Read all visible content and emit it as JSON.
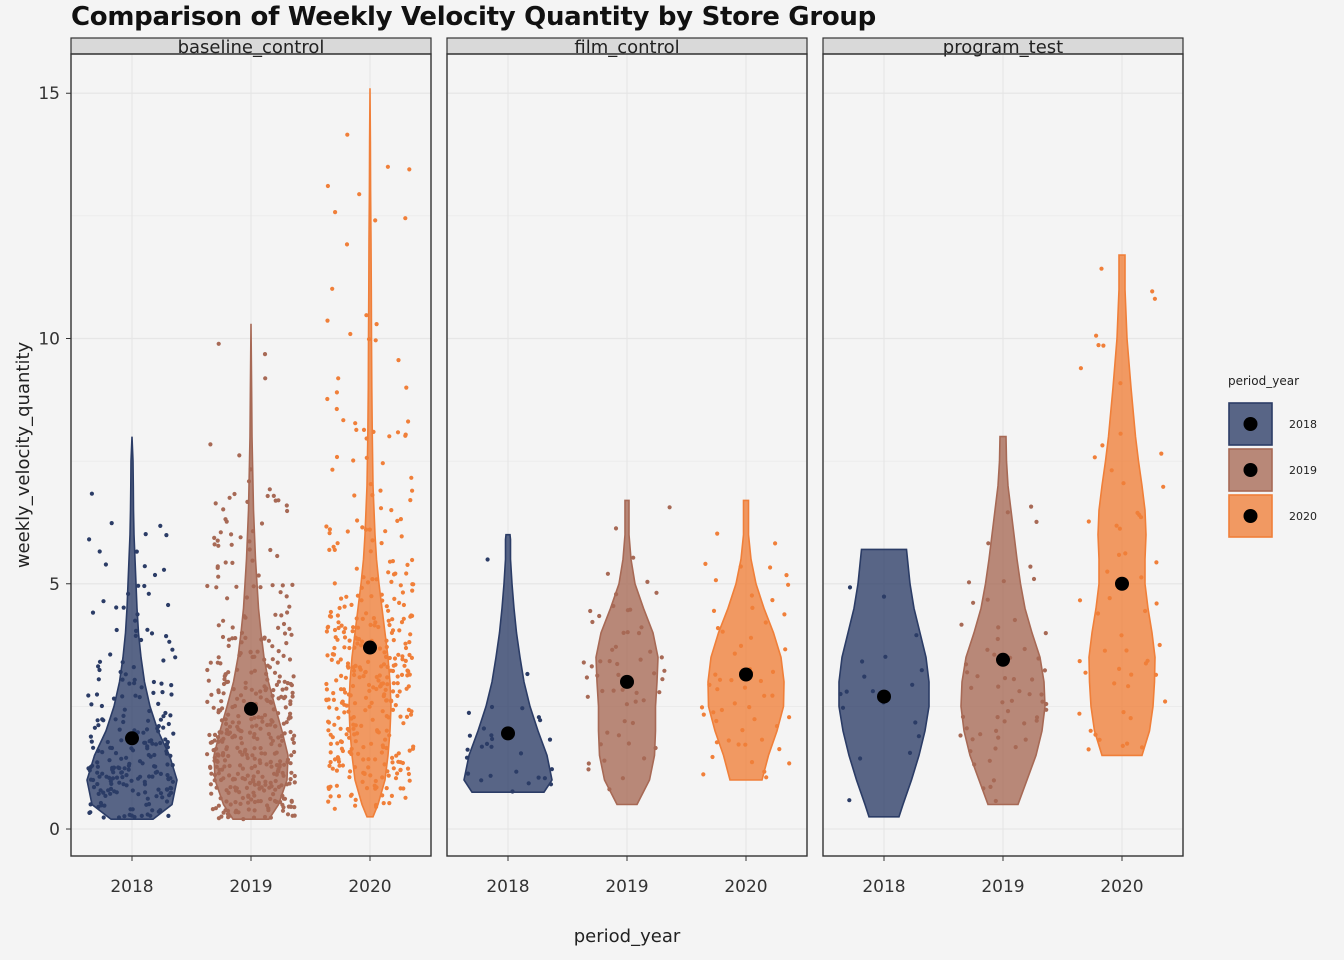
{
  "title": "Comparison of Weekly Velocity Quantity by Store Group",
  "colors": {
    "2018": "#2b3c66",
    "2019": "#a76955",
    "2020": "#f07f39",
    "mean_point": "#000000",
    "panel_bg": "#f4f4f4",
    "strip_bg": "#d9d9d9",
    "grid": "#e6e6e6",
    "border": "#333333"
  },
  "chart_data": {
    "type": "violin",
    "xlabel": "period_year",
    "ylabel": "weekly_velocity_quantity",
    "ylim": [
      -0.55,
      15.8
    ],
    "yticks": [
      0,
      5,
      10,
      15
    ],
    "categories": [
      "2018",
      "2019",
      "2020"
    ],
    "grid": true,
    "legend": {
      "title": "period_year",
      "position": "right",
      "entries": [
        "2018",
        "2019",
        "2020"
      ]
    },
    "facets": [
      {
        "name": "baseline_control",
        "series": [
          {
            "year": "2018",
            "min": 0.2,
            "max": 8.0,
            "mean": 1.85,
            "n_points": 230,
            "violin": [
              [
                0.2,
                0.42
              ],
              [
                0.5,
                0.8
              ],
              [
                1.0,
                0.9
              ],
              [
                1.5,
                0.75
              ],
              [
                2.0,
                0.52
              ],
              [
                2.5,
                0.36
              ],
              [
                3.0,
                0.25
              ],
              [
                3.5,
                0.18
              ],
              [
                4.0,
                0.13
              ],
              [
                4.5,
                0.1
              ],
              [
                5.0,
                0.08
              ],
              [
                5.5,
                0.06
              ],
              [
                6.0,
                0.04
              ],
              [
                6.5,
                0.03
              ],
              [
                7.0,
                0.025
              ],
              [
                7.5,
                0.02
              ],
              [
                8.0,
                0.0
              ]
            ]
          },
          {
            "year": "2019",
            "min": 0.2,
            "max": 10.3,
            "mean": 2.45,
            "n_points": 420,
            "violin": [
              [
                0.2,
                0.36
              ],
              [
                0.5,
                0.55
              ],
              [
                1.0,
                0.72
              ],
              [
                1.5,
                0.74
              ],
              [
                2.0,
                0.62
              ],
              [
                2.5,
                0.48
              ],
              [
                3.0,
                0.35
              ],
              [
                3.5,
                0.26
              ],
              [
                4.0,
                0.2
              ],
              [
                4.5,
                0.15
              ],
              [
                5.0,
                0.12
              ],
              [
                5.5,
                0.09
              ],
              [
                6.0,
                0.07
              ],
              [
                6.5,
                0.05
              ],
              [
                7.0,
                0.04
              ],
              [
                7.5,
                0.03
              ],
              [
                8.0,
                0.02
              ],
              [
                9.0,
                0.012
              ],
              [
                10.3,
                0.0
              ]
            ]
          },
          {
            "year": "2020",
            "min": 0.25,
            "max": 15.1,
            "mean": 3.7,
            "n_points": 390,
            "violin": [
              [
                0.25,
                0.06
              ],
              [
                0.5,
                0.16
              ],
              [
                1.0,
                0.3
              ],
              [
                1.5,
                0.36
              ],
              [
                2.0,
                0.4
              ],
              [
                2.5,
                0.42
              ],
              [
                3.0,
                0.4
              ],
              [
                3.5,
                0.36
              ],
              [
                4.0,
                0.3
              ],
              [
                4.5,
                0.24
              ],
              [
                5.0,
                0.18
              ],
              [
                5.5,
                0.13
              ],
              [
                6.0,
                0.1
              ],
              [
                7.0,
                0.06
              ],
              [
                8.0,
                0.045
              ],
              [
                9.0,
                0.035
              ],
              [
                10.0,
                0.03
              ],
              [
                11.0,
                0.025
              ],
              [
                12.0,
                0.02
              ],
              [
                13.0,
                0.012
              ],
              [
                14.0,
                0.008
              ],
              [
                15.1,
                0.0
              ]
            ]
          }
        ]
      },
      {
        "name": "film_control",
        "series": [
          {
            "year": "2018",
            "min": 0.75,
            "max": 6.0,
            "mean": 1.95,
            "n_points": 28,
            "violin": [
              [
                0.75,
                0.72
              ],
              [
                1.0,
                0.88
              ],
              [
                1.5,
                0.78
              ],
              [
                2.0,
                0.6
              ],
              [
                2.5,
                0.44
              ],
              [
                3.0,
                0.32
              ],
              [
                3.5,
                0.24
              ],
              [
                4.0,
                0.17
              ],
              [
                4.5,
                0.12
              ],
              [
                5.0,
                0.08
              ],
              [
                5.5,
                0.05
              ],
              [
                5.9,
                0.05
              ],
              [
                6.0,
                0.04
              ]
            ]
          },
          {
            "year": "2019",
            "min": 0.5,
            "max": 6.7,
            "mean": 3.0,
            "n_points": 55,
            "violin": [
              [
                0.5,
                0.2
              ],
              [
                1.0,
                0.45
              ],
              [
                1.5,
                0.55
              ],
              [
                2.0,
                0.57
              ],
              [
                2.5,
                0.57
              ],
              [
                3.0,
                0.6
              ],
              [
                3.5,
                0.62
              ],
              [
                4.0,
                0.52
              ],
              [
                4.5,
                0.33
              ],
              [
                5.0,
                0.16
              ],
              [
                5.5,
                0.08
              ],
              [
                6.0,
                0.04
              ],
              [
                6.7,
                0.04
              ]
            ]
          },
          {
            "year": "2020",
            "min": 1.0,
            "max": 6.7,
            "mean": 3.15,
            "n_points": 55,
            "violin": [
              [
                1.0,
                0.32
              ],
              [
                1.5,
                0.45
              ],
              [
                2.0,
                0.62
              ],
              [
                2.5,
                0.75
              ],
              [
                3.0,
                0.76
              ],
              [
                3.5,
                0.7
              ],
              [
                4.0,
                0.55
              ],
              [
                4.5,
                0.36
              ],
              [
                5.0,
                0.2
              ],
              [
                5.5,
                0.1
              ],
              [
                6.0,
                0.05
              ],
              [
                6.7,
                0.05
              ]
            ]
          }
        ]
      },
      {
        "name": "program_test",
        "series": [
          {
            "year": "2018",
            "min": 0.25,
            "max": 5.7,
            "mean": 2.7,
            "n_points": 18,
            "violin": [
              [
                0.25,
                0.3
              ],
              [
                0.5,
                0.38
              ],
              [
                1.0,
                0.55
              ],
              [
                1.5,
                0.7
              ],
              [
                2.0,
                0.82
              ],
              [
                2.5,
                0.9
              ],
              [
                3.0,
                0.9
              ],
              [
                3.5,
                0.84
              ],
              [
                4.0,
                0.72
              ],
              [
                4.5,
                0.6
              ],
              [
                5.0,
                0.52
              ],
              [
                5.7,
                0.45
              ]
            ]
          },
          {
            "year": "2019",
            "min": 0.5,
            "max": 8.0,
            "mean": 3.45,
            "n_points": 60,
            "violin": [
              [
                0.5,
                0.3
              ],
              [
                1.0,
                0.48
              ],
              [
                1.5,
                0.66
              ],
              [
                2.0,
                0.78
              ],
              [
                2.5,
                0.84
              ],
              [
                3.0,
                0.82
              ],
              [
                3.5,
                0.74
              ],
              [
                4.0,
                0.58
              ],
              [
                4.5,
                0.44
              ],
              [
                5.0,
                0.35
              ],
              [
                5.5,
                0.28
              ],
              [
                6.0,
                0.22
              ],
              [
                6.5,
                0.16
              ],
              [
                7.0,
                0.1
              ],
              [
                7.5,
                0.07
              ],
              [
                8.0,
                0.06
              ]
            ]
          },
          {
            "year": "2020",
            "min": 1.5,
            "max": 11.7,
            "mean": 5.0,
            "n_points": 55,
            "violin": [
              [
                1.5,
                0.4
              ],
              [
                2.0,
                0.55
              ],
              [
                2.5,
                0.62
              ],
              [
                3.0,
                0.65
              ],
              [
                3.5,
                0.66
              ],
              [
                4.0,
                0.6
              ],
              [
                4.5,
                0.52
              ],
              [
                5.0,
                0.46
              ],
              [
                5.5,
                0.46
              ],
              [
                6.0,
                0.48
              ],
              [
                6.5,
                0.46
              ],
              [
                7.0,
                0.4
              ],
              [
                7.5,
                0.33
              ],
              [
                8.0,
                0.27
              ],
              [
                9.0,
                0.18
              ],
              [
                10.0,
                0.1
              ],
              [
                11.0,
                0.06
              ],
              [
                11.7,
                0.06
              ]
            ]
          }
        ]
      }
    ]
  }
}
